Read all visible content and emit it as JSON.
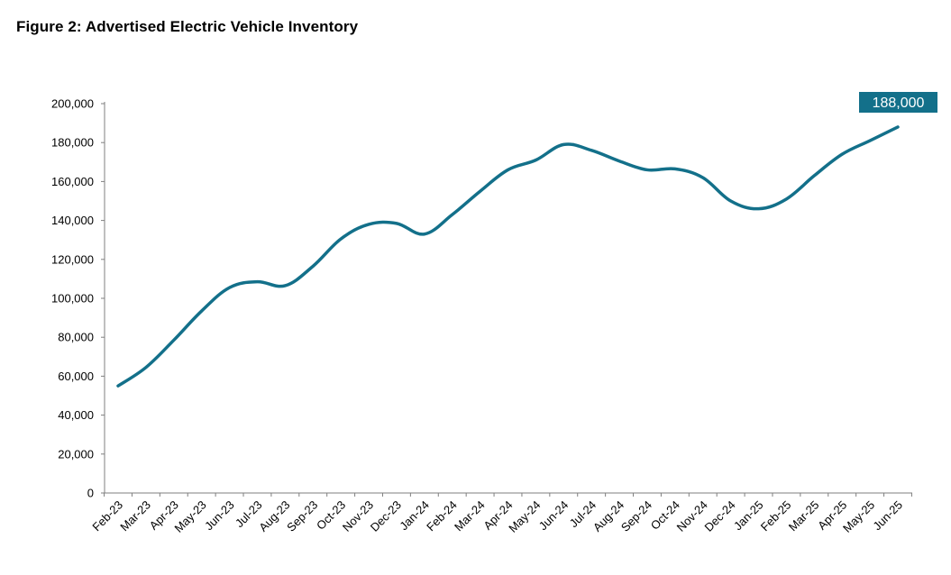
{
  "title": "Figure 2: Advertised Electric Vehicle Inventory",
  "chart_data": {
    "type": "line",
    "title": "Figure 2: Advertised Electric Vehicle Inventory",
    "xlabel": "",
    "ylabel": "",
    "ylim": [
      0,
      200000
    ],
    "y_ticks": [
      "0",
      "20,000",
      "40,000",
      "60,000",
      "80,000",
      "100,000",
      "120,000",
      "140,000",
      "160,000",
      "180,000",
      "200,000"
    ],
    "categories": [
      "Feb-23",
      "Mar-23",
      "Apr-23",
      "May-23",
      "Jun-23",
      "Jul-23",
      "Aug-23",
      "Sep-23",
      "Oct-23",
      "Nov-23",
      "Dec-23",
      "Jan-24",
      "Feb-24",
      "Mar-24",
      "Apr-24",
      "May-24",
      "Jun-24",
      "Jul-24",
      "Aug-24",
      "Sep-24",
      "Oct-24",
      "Nov-24",
      "Dec-24",
      "Jan-25",
      "Feb-25",
      "Mar-25",
      "Apr-25",
      "May-25",
      "Jun-25"
    ],
    "series": [
      {
        "values": [
          55000,
          64500,
          78500,
          93500,
          105500,
          108500,
          106500,
          116500,
          130500,
          138000,
          138500,
          133000,
          143000,
          155000,
          166000,
          171000,
          179000,
          176000,
          170500,
          166000,
          166500,
          162000,
          150000,
          146000,
          151000,
          163000,
          174000,
          181000,
          188000
        ],
        "color": "#13708a"
      }
    ],
    "annotation": {
      "label": "188,000",
      "color": "#13708a",
      "text_color": "#ffffff"
    },
    "grid": false,
    "legend": "none"
  }
}
